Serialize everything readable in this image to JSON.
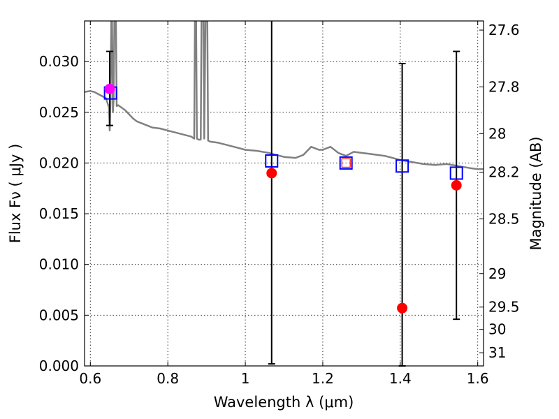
{
  "chart_data": {
    "type": "scatter",
    "title": "",
    "xlabel": "Wavelength  λ (μm)",
    "ylabel": "Flux  Fν  ( μJy )",
    "y2label": "Magnitude (AB)",
    "xlim": [
      0.585,
      1.615
    ],
    "ylim": [
      0.0,
      0.034
    ],
    "grid": true,
    "xticks": [
      0.6,
      0.8,
      1.0,
      1.2,
      1.4,
      1.6
    ],
    "xtick_labels": [
      "0.6",
      "0.8",
      "1",
      "1.2",
      "1.4",
      "1.6"
    ],
    "yticks": [
      0.0,
      0.005,
      0.01,
      0.015,
      0.02,
      0.025,
      0.03
    ],
    "ytick_labels": [
      "0.000",
      "0.005",
      "0.010",
      "0.015",
      "0.020",
      "0.025",
      "0.030"
    ],
    "y2ticks": [
      {
        "label": "27.6",
        "flux": 0.0331
      },
      {
        "label": "27.8",
        "flux": 0.0275
      },
      {
        "label": "28",
        "flux": 0.0229
      },
      {
        "label": "28.2",
        "flux": 0.0191
      },
      {
        "label": "28.5",
        "flux": 0.0145
      },
      {
        "label": "29",
        "flux": 0.0091
      },
      {
        "label": "29.5",
        "flux": 0.0058
      },
      {
        "label": "30",
        "flux": 0.0036
      },
      {
        "label": "31",
        "flux": 0.0013
      }
    ],
    "model_spectrum": {
      "color": "#808080",
      "points": [
        [
          0.585,
          0.027
        ],
        [
          0.6,
          0.0271
        ],
        [
          0.61,
          0.027
        ],
        [
          0.62,
          0.0268
        ],
        [
          0.63,
          0.0266
        ],
        [
          0.64,
          0.0264
        ],
        [
          0.648,
          0.0255
        ],
        [
          0.65,
          0.0232
        ],
        [
          0.652,
          0.026
        ],
        [
          0.654,
          0.034
        ],
        [
          0.656,
          0.034
        ],
        [
          0.658,
          0.025
        ],
        [
          0.66,
          0.0262
        ],
        [
          0.662,
          0.034
        ],
        [
          0.664,
          0.034
        ],
        [
          0.666,
          0.034
        ],
        [
          0.668,
          0.0256
        ],
        [
          0.672,
          0.0257
        ],
        [
          0.69,
          0.0252
        ],
        [
          0.7,
          0.0248
        ],
        [
          0.71,
          0.0244
        ],
        [
          0.72,
          0.0241
        ],
        [
          0.74,
          0.0238
        ],
        [
          0.76,
          0.0235
        ],
        [
          0.78,
          0.0234
        ],
        [
          0.8,
          0.0232
        ],
        [
          0.82,
          0.023
        ],
        [
          0.84,
          0.0228
        ],
        [
          0.86,
          0.0226
        ],
        [
          0.868,
          0.0224
        ],
        [
          0.87,
          0.034
        ],
        [
          0.873,
          0.034
        ],
        [
          0.875,
          0.0224
        ],
        [
          0.88,
          0.0223
        ],
        [
          0.885,
          0.0223
        ],
        [
          0.887,
          0.034
        ],
        [
          0.892,
          0.034
        ],
        [
          0.894,
          0.0224
        ],
        [
          0.897,
          0.034
        ],
        [
          0.902,
          0.034
        ],
        [
          0.904,
          0.0222
        ],
        [
          0.91,
          0.0221
        ],
        [
          0.93,
          0.022
        ],
        [
          0.96,
          0.0217
        ],
        [
          0.98,
          0.0215
        ],
        [
          1.0,
          0.0213
        ],
        [
          1.03,
          0.0212
        ],
        [
          1.06,
          0.021
        ],
        [
          1.08,
          0.0208
        ],
        [
          1.1,
          0.0206
        ],
        [
          1.13,
          0.0205
        ],
        [
          1.15,
          0.0208
        ],
        [
          1.17,
          0.0216
        ],
        [
          1.19,
          0.0213
        ],
        [
          1.2,
          0.0213
        ],
        [
          1.22,
          0.0216
        ],
        [
          1.24,
          0.021
        ],
        [
          1.26,
          0.0207
        ],
        [
          1.28,
          0.0211
        ],
        [
          1.3,
          0.021
        ],
        [
          1.32,
          0.0209
        ],
        [
          1.34,
          0.0208
        ],
        [
          1.36,
          0.0207
        ],
        [
          1.38,
          0.0205
        ],
        [
          1.4,
          0.0203
        ],
        [
          1.43,
          0.0201
        ],
        [
          1.46,
          0.0199
        ],
        [
          1.49,
          0.0198
        ],
        [
          1.52,
          0.0199
        ],
        [
          1.55,
          0.0197
        ],
        [
          1.58,
          0.0195
        ],
        [
          1.6,
          0.0194
        ],
        [
          1.615,
          0.0194
        ]
      ]
    },
    "observed_points": [
      {
        "x": 0.65,
        "y": 0.0273,
        "color": "#ff00ff"
      },
      {
        "x": 1.068,
        "y": 0.019,
        "color": "#ff0000"
      },
      {
        "x": 1.405,
        "y": 0.0057,
        "color": "#ff0000"
      },
      {
        "x": 1.545,
        "y": 0.0178,
        "color": "#ff0000"
      }
    ],
    "error_bars": [
      {
        "x": 0.65,
        "low": 0.0237,
        "high": 0.031
      },
      {
        "x": 1.068,
        "low": 0.0002,
        "high": 0.034
      },
      {
        "x": 1.405,
        "low": 0.0,
        "high": 0.0298
      },
      {
        "x": 1.545,
        "low": 0.0046,
        "high": 0.031
      }
    ],
    "model_band_fluxes": [
      {
        "x": 0.652,
        "y": 0.0269
      },
      {
        "x": 1.068,
        "y": 0.0202
      },
      {
        "x": 1.26,
        "y": 0.02
      },
      {
        "x": 1.405,
        "y": 0.0197
      },
      {
        "x": 1.545,
        "y": 0.019
      }
    ],
    "open_red_square": {
      "x": 1.26,
      "y": 0.02
    },
    "colors": {
      "band_square": "#0000ff",
      "observed": "#ff0000",
      "error_bar": "#000000"
    }
  }
}
